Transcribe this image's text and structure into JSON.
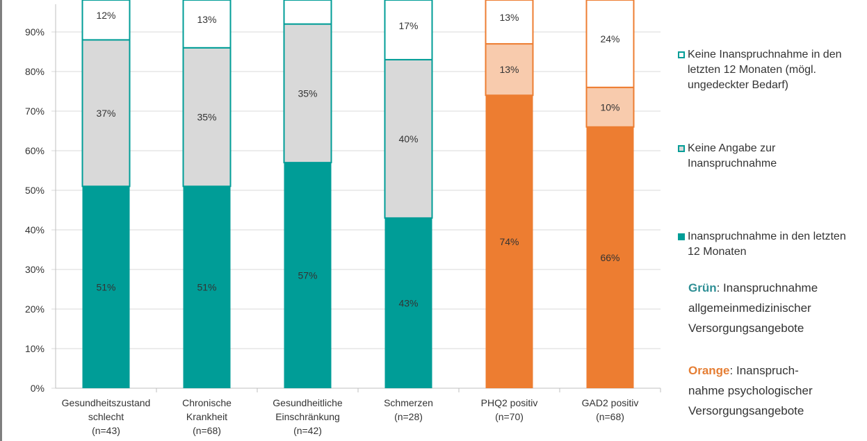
{
  "chart_data": {
    "type": "bar",
    "stacked": true,
    "categories": [
      [
        "Gesundheitszustand",
        "schlecht",
        "(n=43)"
      ],
      [
        "Chronische",
        "Krankheit",
        "(n=68)"
      ],
      [
        "Gesundheitliche",
        "Einschränkung",
        "(n=42)"
      ],
      [
        "Schmerzen",
        "(n=28)"
      ],
      [
        "PHQ2 positiv",
        "(n=70)"
      ],
      [
        "GAD2 positiv",
        "(n=68)"
      ]
    ],
    "series": [
      {
        "name": "Inanspruchnahme in den letzten 12 Monaten",
        "values": [
          51,
          51,
          57,
          43,
          74,
          66
        ],
        "labels": [
          "51%",
          "51%",
          "57%",
          "43%",
          "74%",
          "66%"
        ]
      },
      {
        "name": "Keine Angabe zur Inanspruchnahme",
        "values": [
          37,
          35,
          35,
          40,
          13,
          10
        ],
        "labels": [
          "37%",
          "35%",
          "35%",
          "40%",
          "13%",
          "10%"
        ]
      },
      {
        "name": "Keine Inanspruchnahme in den letzten 12 Monaten (mögl. ungedeckter Bedarf)",
        "values": [
          12,
          13,
          8,
          17,
          13,
          24
        ],
        "labels": [
          "12%",
          "13%",
          "",
          "17%",
          "13%",
          "24%"
        ]
      }
    ],
    "bar_groups": [
      "green",
      "green",
      "green",
      "green",
      "orange",
      "orange"
    ],
    "colors": {
      "green": {
        "fill": "#009d97",
        "mid": "#d9d9d9",
        "border": "#009d97"
      },
      "orange": {
        "fill": "#ed7d31",
        "mid": "#f8cbad",
        "border": "#ed7d31"
      }
    },
    "yticks": [
      "0%",
      "10%",
      "20%",
      "30%",
      "40%",
      "50%",
      "60%",
      "70%",
      "80%",
      "90%"
    ],
    "ylim": [
      0,
      97
    ],
    "grid": true,
    "legend_position": "right"
  },
  "legend": [
    {
      "label_lines": [
        "Keine Inanspruchnahme in den",
        "letzten 12 Monaten (mögl.",
        "ungedeckter Bedarf)"
      ],
      "style": "outline"
    },
    {
      "label_lines": [
        "Keine Angabe zur",
        "Inanspruchnahme"
      ],
      "style": "light"
    },
    {
      "label_lines": [
        "Inanspruchnahme in den letzten",
        "12 Monaten"
      ],
      "style": "solid"
    }
  ],
  "notes": {
    "green_key": "Grün",
    "green_text": ": Inanspruchnahme",
    "green_lines": [
      "allgemeinmedizinischer",
      "Versorgungsangebote"
    ],
    "orange_key": "Orange",
    "orange_text": ": Inanspruch-",
    "orange_lines": [
      "nahme psychologischer",
      "Versorgungsangebote"
    ]
  }
}
